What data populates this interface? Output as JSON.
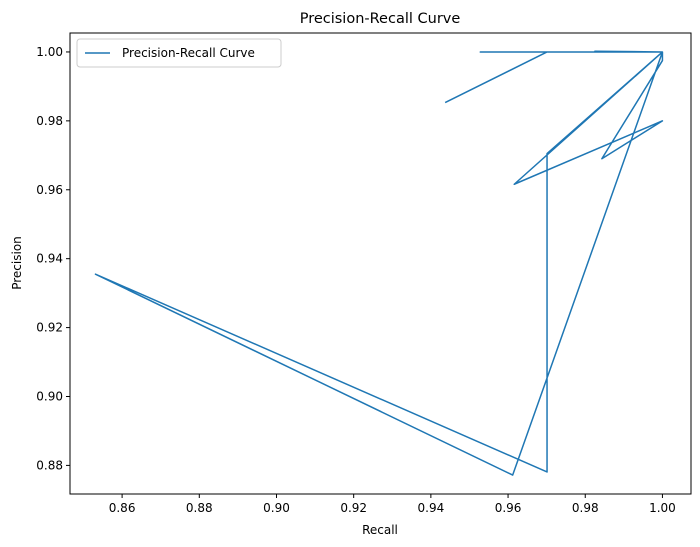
{
  "chart_data": {
    "type": "line",
    "title": "Precision-Recall Curve",
    "xlabel": "Recall",
    "ylabel": "Precision",
    "xlim": [
      0.8465,
      1.0074
    ],
    "ylim": [
      0.8717,
      1.0055
    ],
    "xticks": [
      0.86,
      0.88,
      0.9,
      0.92,
      0.94,
      0.96,
      0.98,
      1.0
    ],
    "xtick_labels": [
      "0.86",
      "0.88",
      "0.90",
      "0.92",
      "0.94",
      "0.96",
      "0.98",
      "1.00"
    ],
    "yticks": [
      0.88,
      0.9,
      0.92,
      0.94,
      0.96,
      0.98,
      1.0
    ],
    "ytick_labels": [
      "0.88",
      "0.90",
      "0.92",
      "0.94",
      "0.96",
      "0.98",
      "1.00"
    ],
    "grid": false,
    "legend_position": "upper-left",
    "series": [
      {
        "name": "Precision-Recall Curve",
        "color": "#1f77b4",
        "x": [
          0.9437,
          0.9701,
          0.9528,
          1.0,
          0.9825,
          1.0,
          0.9616,
          1.0,
          0.9843,
          1.0,
          1.0,
          0.9701,
          0.9701,
          0.8531,
          0.9612,
          1.0
        ],
        "y": [
          0.9853,
          1.0,
          1.0,
          1.0,
          1.0002,
          1.0,
          0.9616,
          0.98,
          0.969,
          0.9975,
          1.0,
          0.9705,
          0.8781,
          0.9355,
          0.8772,
          1.0
        ]
      }
    ]
  }
}
